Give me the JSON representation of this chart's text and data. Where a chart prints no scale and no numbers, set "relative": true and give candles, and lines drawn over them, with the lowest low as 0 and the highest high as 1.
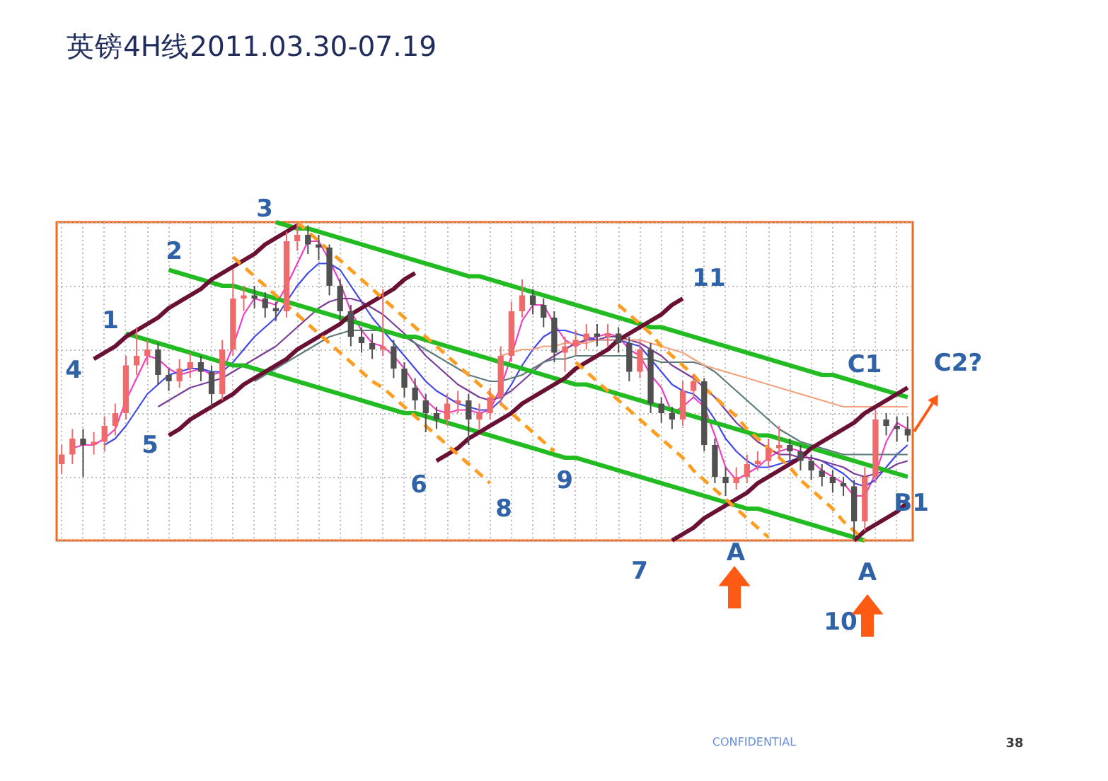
{
  "chart_data": {
    "type": "candlestick",
    "relative": true,
    "title": "英镑4H线2011.03.30-07.19",
    "grid": true,
    "tick_labels": false,
    "categories": [
      null,
      null,
      null,
      null,
      null,
      null,
      null,
      null,
      null,
      null,
      null,
      null,
      null,
      null,
      null,
      null,
      null,
      null,
      null,
      null,
      null,
      null,
      null,
      null,
      null,
      null,
      null,
      null,
      null,
      null,
      null,
      null,
      null,
      null,
      null,
      null,
      null,
      null,
      null,
      null,
      null,
      null,
      null,
      null,
      null,
      null,
      null,
      null,
      null,
      null,
      null,
      null,
      null,
      null,
      null,
      null,
      null,
      null,
      null,
      null,
      null,
      null,
      null,
      null,
      null,
      null,
      null,
      null,
      null,
      null,
      null,
      null,
      null,
      null,
      null,
      null,
      null,
      null,
      null,
      null
    ],
    "ohlc": [
      [
        0.24,
        0.3,
        0.21,
        0.27
      ],
      [
        0.27,
        0.35,
        0.24,
        0.32
      ],
      [
        0.32,
        0.35,
        0.2,
        0.3
      ],
      [
        0.3,
        0.34,
        0.27,
        0.31
      ],
      [
        0.31,
        0.39,
        0.28,
        0.36
      ],
      [
        0.36,
        0.43,
        0.33,
        0.4
      ],
      [
        0.4,
        0.58,
        0.38,
        0.55
      ],
      [
        0.55,
        0.67,
        0.52,
        0.58
      ],
      [
        0.58,
        0.63,
        0.55,
        0.6
      ],
      [
        0.6,
        0.62,
        0.49,
        0.52
      ],
      [
        0.52,
        0.54,
        0.47,
        0.5
      ],
      [
        0.5,
        0.57,
        0.48,
        0.54
      ],
      [
        0.54,
        0.59,
        0.51,
        0.56
      ],
      [
        0.56,
        0.58,
        0.5,
        0.53
      ],
      [
        0.53,
        0.55,
        0.42,
        0.46
      ],
      [
        0.46,
        0.63,
        0.44,
        0.6
      ],
      [
        0.6,
        0.85,
        0.58,
        0.76
      ],
      [
        0.76,
        0.8,
        0.72,
        0.77
      ],
      [
        0.77,
        0.8,
        0.73,
        0.76
      ],
      [
        0.76,
        0.78,
        0.7,
        0.73
      ],
      [
        0.73,
        0.75,
        0.69,
        0.72
      ],
      [
        0.72,
        0.97,
        0.7,
        0.94
      ],
      [
        0.94,
        1.0,
        0.91,
        0.96
      ],
      [
        0.96,
        0.99,
        0.9,
        0.93
      ],
      [
        0.93,
        0.96,
        0.88,
        0.92
      ],
      [
        0.92,
        0.93,
        0.77,
        0.8
      ],
      [
        0.8,
        0.82,
        0.69,
        0.72
      ],
      [
        0.72,
        0.74,
        0.61,
        0.64
      ],
      [
        0.64,
        0.67,
        0.59,
        0.62
      ],
      [
        0.62,
        0.65,
        0.57,
        0.6
      ],
      [
        0.6,
        0.79,
        0.58,
        0.61
      ],
      [
        0.61,
        0.63,
        0.51,
        0.54
      ],
      [
        0.54,
        0.56,
        0.45,
        0.48
      ],
      [
        0.48,
        0.51,
        0.41,
        0.44
      ],
      [
        0.44,
        0.46,
        0.34,
        0.4
      ],
      [
        0.4,
        0.42,
        0.35,
        0.38
      ],
      [
        0.38,
        0.46,
        0.36,
        0.43
      ],
      [
        0.43,
        0.47,
        0.4,
        0.44
      ],
      [
        0.44,
        0.46,
        0.3,
        0.38
      ],
      [
        0.38,
        0.43,
        0.35,
        0.4
      ],
      [
        0.4,
        0.48,
        0.38,
        0.45
      ],
      [
        0.45,
        0.61,
        0.43,
        0.58
      ],
      [
        0.58,
        0.75,
        0.56,
        0.72
      ],
      [
        0.72,
        0.82,
        0.7,
        0.77
      ],
      [
        0.77,
        0.79,
        0.71,
        0.74
      ],
      [
        0.74,
        0.76,
        0.67,
        0.7
      ],
      [
        0.7,
        0.72,
        0.56,
        0.59
      ],
      [
        0.59,
        0.64,
        0.53,
        0.61
      ],
      [
        0.61,
        0.66,
        0.58,
        0.63
      ],
      [
        0.63,
        0.68,
        0.6,
        0.65
      ],
      [
        0.65,
        0.68,
        0.61,
        0.64
      ],
      [
        0.64,
        0.68,
        0.61,
        0.65
      ],
      [
        0.65,
        0.67,
        0.59,
        0.62
      ],
      [
        0.62,
        0.64,
        0.5,
        0.53
      ],
      [
        0.53,
        0.63,
        0.51,
        0.6
      ],
      [
        0.6,
        0.62,
        0.4,
        0.43
      ],
      [
        0.43,
        0.45,
        0.37,
        0.4
      ],
      [
        0.4,
        0.42,
        0.35,
        0.38
      ],
      [
        0.38,
        0.5,
        0.36,
        0.47
      ],
      [
        0.47,
        0.52,
        0.45,
        0.5
      ],
      [
        0.5,
        0.51,
        0.28,
        0.3
      ],
      [
        0.3,
        0.32,
        0.18,
        0.2
      ],
      [
        0.2,
        0.23,
        0.14,
        0.18
      ],
      [
        0.18,
        0.23,
        0.16,
        0.2
      ],
      [
        0.2,
        0.27,
        0.18,
        0.24
      ],
      [
        0.24,
        0.28,
        0.22,
        0.25
      ],
      [
        0.25,
        0.32,
        0.23,
        0.29
      ],
      [
        0.29,
        0.36,
        0.26,
        0.3
      ],
      [
        0.3,
        0.32,
        0.25,
        0.28
      ],
      [
        0.28,
        0.3,
        0.22,
        0.25
      ],
      [
        0.25,
        0.27,
        0.19,
        0.22
      ],
      [
        0.22,
        0.24,
        0.17,
        0.2
      ],
      [
        0.2,
        0.22,
        0.15,
        0.18
      ],
      [
        0.18,
        0.2,
        0.14,
        0.17
      ],
      [
        0.17,
        0.19,
        0.0,
        0.06
      ],
      [
        0.06,
        0.23,
        0.03,
        0.2
      ],
      [
        0.2,
        0.41,
        0.18,
        0.38
      ],
      [
        0.38,
        0.4,
        0.33,
        0.36
      ],
      [
        0.36,
        0.39,
        0.31,
        0.35
      ],
      [
        0.35,
        0.39,
        0.31,
        0.33
      ]
    ],
    "colors": [
      "#ef6b6b",
      "#ef6b6b",
      "#505050",
      "#ef6b6b",
      "#ef6b6b",
      "#ef6b6b",
      "#ef6b6b",
      "#ef6b6b",
      "#ef6b6b",
      "#505050",
      "#505050",
      "#ef6b6b",
      "#ef6b6b",
      "#505050",
      "#505050",
      "#ef6b6b",
      "#ef6b6b",
      "#ef6b6b",
      "#505050",
      "#505050",
      "#505050",
      "#ef6b6b",
      "#ef6b6b",
      "#505050",
      "#505050",
      "#505050",
      "#505050",
      "#505050",
      "#505050",
      "#505050",
      "#ef6b6b",
      "#505050",
      "#505050",
      "#505050",
      "#505050",
      "#505050",
      "#ef6b6b",
      "#ef6b6b",
      "#505050",
      "#ef6b6b",
      "#ef6b6b",
      "#ef6b6b",
      "#ef6b6b",
      "#ef6b6b",
      "#505050",
      "#505050",
      "#505050",
      "#ef6b6b",
      "#ef6b6b",
      "#ef6b6b",
      "#505050",
      "#ef6b6b",
      "#505050",
      "#505050",
      "#ef6b6b",
      "#505050",
      "#505050",
      "#505050",
      "#ef6b6b",
      "#ef6b6b",
      "#505050",
      "#505050",
      "#505050",
      "#ef6b6b",
      "#ef6b6b",
      "#ef6b6b",
      "#ef6b6b",
      "#ef6b6b",
      "#505050",
      "#505050",
      "#505050",
      "#505050",
      "#505050",
      "#505050",
      "#505050",
      "#ef6b6b",
      "#ef6b6b",
      "#505050",
      "#505050",
      "#505050"
    ],
    "series": [
      {
        "type": "line",
        "color": "#ee3fc4",
        "values": [
          null,
          0.29,
          0.3,
          0.3,
          0.32,
          0.35,
          0.44,
          0.51,
          0.58,
          0.57,
          0.54,
          0.52,
          0.53,
          0.54,
          0.52,
          0.53,
          0.61,
          0.71,
          0.76,
          0.75,
          0.74,
          0.8,
          0.87,
          0.94,
          0.94,
          0.88,
          0.81,
          0.72,
          0.66,
          0.62,
          0.61,
          0.58,
          0.54,
          0.49,
          0.44,
          0.41,
          0.4,
          0.41,
          0.41,
          0.4,
          0.41,
          0.48,
          0.58,
          0.69,
          0.74,
          0.74,
          0.68,
          0.63,
          0.61,
          0.63,
          0.64,
          0.65,
          0.64,
          0.6,
          0.58,
          0.52,
          0.48,
          0.4,
          0.42,
          0.45,
          0.42,
          0.33,
          0.23,
          0.19,
          0.21,
          0.23,
          0.26,
          0.28,
          0.29,
          0.28,
          0.25,
          0.22,
          0.2,
          0.18,
          0.14,
          0.14,
          0.21,
          0.31,
          0.37,
          0.35
        ]
      },
      {
        "type": "line",
        "color": "#3f48e8",
        "values": [
          null,
          null,
          null,
          null,
          0.3,
          0.32,
          0.36,
          0.41,
          0.46,
          0.49,
          0.52,
          0.53,
          0.54,
          0.54,
          0.53,
          0.53,
          0.56,
          0.6,
          0.64,
          0.67,
          0.7,
          0.75,
          0.8,
          0.84,
          0.87,
          0.87,
          0.85,
          0.8,
          0.75,
          0.7,
          0.66,
          0.62,
          0.58,
          0.54,
          0.5,
          0.47,
          0.45,
          0.43,
          0.42,
          0.41,
          0.41,
          0.44,
          0.49,
          0.55,
          0.6,
          0.64,
          0.66,
          0.66,
          0.65,
          0.64,
          0.63,
          0.63,
          0.63,
          0.62,
          0.61,
          0.57,
          0.53,
          0.49,
          0.47,
          0.46,
          0.43,
          0.38,
          0.32,
          0.28,
          0.25,
          0.23,
          0.23,
          0.24,
          0.25,
          0.26,
          0.26,
          0.25,
          0.23,
          0.21,
          0.18,
          0.17,
          0.19,
          0.23,
          0.27,
          0.3
        ]
      },
      {
        "type": "line",
        "color": "#7a3b99",
        "values": [
          null,
          null,
          null,
          null,
          null,
          null,
          null,
          null,
          null,
          0.42,
          0.44,
          0.46,
          0.48,
          0.49,
          0.5,
          0.51,
          0.53,
          0.55,
          0.57,
          0.59,
          0.61,
          0.64,
          0.67,
          0.7,
          0.73,
          0.75,
          0.76,
          0.76,
          0.75,
          0.73,
          0.71,
          0.68,
          0.65,
          0.62,
          0.58,
          0.55,
          0.52,
          0.49,
          0.47,
          0.45,
          0.44,
          0.45,
          0.47,
          0.5,
          0.53,
          0.56,
          0.58,
          0.6,
          0.62,
          0.63,
          0.63,
          0.64,
          0.64,
          0.63,
          0.62,
          0.6,
          0.58,
          0.55,
          0.53,
          0.51,
          0.48,
          0.45,
          0.41,
          0.37,
          0.34,
          0.31,
          0.29,
          0.27,
          0.27,
          0.26,
          0.26,
          0.25,
          0.24,
          0.23,
          0.21,
          0.2,
          0.21,
          0.22,
          0.24,
          0.25
        ]
      },
      {
        "type": "line",
        "color": "#5e7b7b",
        "values": [
          null,
          null,
          null,
          null,
          null,
          null,
          null,
          null,
          null,
          null,
          null,
          null,
          null,
          null,
          null,
          null,
          null,
          null,
          0.5,
          0.52,
          0.54,
          0.56,
          0.58,
          0.6,
          0.62,
          0.64,
          0.65,
          0.66,
          0.66,
          0.66,
          0.66,
          0.65,
          0.64,
          0.62,
          0.6,
          0.58,
          0.56,
          0.54,
          0.52,
          0.51,
          0.5,
          0.5,
          0.51,
          0.52,
          0.54,
          0.56,
          0.57,
          0.57,
          0.58,
          0.58,
          0.58,
          0.58,
          0.58,
          0.58,
          0.57,
          0.57,
          0.56,
          0.56,
          0.56,
          0.56,
          0.55,
          0.53,
          0.5,
          0.47,
          0.44,
          0.41,
          0.38,
          0.35,
          0.33,
          0.31,
          0.3,
          0.29,
          0.28,
          0.27,
          0.27,
          0.27,
          0.27,
          0.27,
          0.27,
          0.27
        ]
      },
      {
        "type": "line",
        "color": "#f3a27d",
        "values": [
          null,
          null,
          null,
          null,
          null,
          null,
          null,
          null,
          null,
          null,
          null,
          null,
          null,
          null,
          null,
          null,
          null,
          null,
          null,
          null,
          null,
          null,
          null,
          null,
          null,
          null,
          null,
          null,
          null,
          null,
          null,
          null,
          null,
          null,
          null,
          null,
          null,
          null,
          null,
          null,
          null,
          0.58,
          0.59,
          0.6,
          0.6,
          0.61,
          0.61,
          0.62,
          0.62,
          0.62,
          0.63,
          0.63,
          0.63,
          0.63,
          0.63,
          0.62,
          0.61,
          0.6,
          0.59,
          0.57,
          0.55,
          0.54,
          0.53,
          0.52,
          0.51,
          0.5,
          0.49,
          0.48,
          0.47,
          0.46,
          0.45,
          0.44,
          0.43,
          0.42,
          0.42,
          0.42,
          0.42,
          0.42,
          0.42,
          0.42
        ]
      },
      {
        "type": "line",
        "color": "#22bb22",
        "values": [
          null,
          null,
          null,
          null,
          null,
          null,
          null,
          null,
          null,
          null,
          null,
          null,
          null,
          null,
          null,
          null,
          null,
          null,
          null,
          null,
          1.0,
          0.99,
          0.98,
          0.98,
          0.97,
          0.96,
          0.95,
          0.94,
          0.93,
          0.92,
          0.91,
          0.9,
          0.89,
          0.88,
          0.87,
          0.86,
          0.85,
          0.84,
          0.83,
          0.83,
          0.82,
          0.81,
          0.8,
          0.79,
          0.78,
          0.77,
          0.76,
          0.75,
          0.74,
          0.73,
          0.72,
          0.71,
          0.7,
          0.69,
          0.68,
          0.67,
          0.67,
          0.66,
          0.65,
          0.64,
          0.63,
          0.62,
          0.61,
          0.6,
          0.59,
          0.58,
          0.57,
          0.56,
          0.55,
          0.54,
          0.53,
          0.52,
          0.52,
          0.51,
          0.5,
          0.49,
          0.48,
          0.47,
          0.46,
          0.45
        ]
      },
      {
        "type": "line",
        "color": "#22bb22",
        "values": [
          null,
          null,
          null,
          null,
          null,
          null,
          null,
          null,
          null,
          null,
          0.85,
          0.84,
          0.83,
          0.82,
          0.81,
          0.8,
          0.8,
          0.79,
          0.78,
          0.77,
          0.76,
          0.75,
          0.74,
          0.73,
          0.72,
          0.71,
          0.7,
          0.69,
          0.68,
          0.67,
          0.66,
          0.65,
          0.64,
          0.64,
          0.63,
          0.62,
          0.61,
          0.6,
          0.59,
          0.58,
          0.57,
          0.56,
          0.55,
          0.54,
          0.53,
          0.52,
          0.51,
          0.5,
          0.49,
          0.49,
          0.48,
          0.47,
          0.46,
          0.45,
          0.44,
          0.43,
          0.42,
          0.41,
          0.4,
          0.39,
          0.38,
          0.37,
          0.36,
          0.35,
          0.34,
          0.33,
          0.33,
          0.32,
          0.31,
          0.3,
          0.29,
          0.28,
          0.27,
          0.26,
          0.25,
          0.24,
          0.23,
          0.22,
          0.21,
          0.2
        ]
      },
      {
        "type": "line",
        "color": "#22bb22",
        "values": [
          null,
          null,
          null,
          null,
          null,
          null,
          0.65,
          0.64,
          0.63,
          0.62,
          0.61,
          0.6,
          0.59,
          0.58,
          0.57,
          0.56,
          0.55,
          0.55,
          0.54,
          0.53,
          0.52,
          0.51,
          0.5,
          0.49,
          0.48,
          0.47,
          0.46,
          0.45,
          0.44,
          0.43,
          0.42,
          0.41,
          0.4,
          0.4,
          0.39,
          0.38,
          0.37,
          0.36,
          0.35,
          0.34,
          0.33,
          0.32,
          0.31,
          0.3,
          0.29,
          0.28,
          0.27,
          0.26,
          0.26,
          0.25,
          0.24,
          0.23,
          0.22,
          0.21,
          0.2,
          0.19,
          0.18,
          0.17,
          0.16,
          0.15,
          0.14,
          0.13,
          0.12,
          0.11,
          0.1,
          0.1,
          0.09,
          0.08,
          0.07,
          0.06,
          0.05,
          0.04,
          0.03,
          0.02,
          0.01,
          0.0,
          null,
          null,
          null,
          null
        ]
      },
      {
        "type": "line",
        "color": "#6a1035",
        "values": [
          null,
          null,
          null,
          0.57,
          0.59,
          0.61,
          0.64,
          0.66,
          0.68,
          0.7,
          0.73,
          0.75,
          0.77,
          0.79,
          0.82,
          0.84,
          0.86,
          0.88,
          0.9,
          0.93,
          0.95,
          0.97,
          0.99,
          null,
          null,
          null,
          null,
          null,
          null,
          null,
          null,
          null,
          null,
          null,
          null,
          null,
          null,
          null,
          null,
          null,
          null,
          null,
          null,
          null,
          null,
          null,
          null,
          null,
          null,
          null,
          null,
          null,
          null,
          null,
          null,
          null,
          null,
          null,
          null,
          null,
          null,
          null,
          null,
          null,
          null,
          null,
          null,
          null,
          null,
          null,
          null,
          null,
          null,
          null,
          null,
          null,
          null,
          null,
          null,
          null
        ]
      },
      {
        "type": "line",
        "color": "#6a1035",
        "values": [
          null,
          null,
          null,
          null,
          null,
          null,
          null,
          null,
          null,
          null,
          0.33,
          0.35,
          0.38,
          0.4,
          0.42,
          0.44,
          0.46,
          0.49,
          0.51,
          0.53,
          0.55,
          0.57,
          0.6,
          0.62,
          0.64,
          0.66,
          0.68,
          0.71,
          0.73,
          0.75,
          0.77,
          0.79,
          0.82,
          0.84,
          null,
          null,
          null,
          null,
          null,
          null,
          null,
          null,
          null,
          null,
          null,
          null,
          null,
          null,
          null,
          null,
          null,
          null,
          null,
          null,
          null,
          null,
          null,
          null,
          null,
          null,
          null,
          null,
          null,
          null,
          null,
          null,
          null,
          null,
          null,
          null,
          null,
          null,
          null,
          null,
          null,
          null,
          null,
          null,
          null,
          null
        ]
      },
      {
        "type": "line",
        "color": "#6a1035",
        "values": [
          null,
          null,
          null,
          null,
          null,
          null,
          null,
          null,
          null,
          null,
          null,
          null,
          null,
          null,
          null,
          null,
          null,
          null,
          null,
          null,
          null,
          null,
          null,
          null,
          null,
          null,
          null,
          null,
          null,
          null,
          null,
          null,
          null,
          null,
          null,
          0.25,
          0.27,
          0.29,
          0.32,
          0.34,
          0.36,
          0.38,
          0.4,
          0.43,
          0.45,
          0.47,
          0.49,
          0.51,
          0.54,
          0.56,
          0.58,
          0.6,
          0.63,
          0.65,
          0.67,
          0.69,
          0.71,
          0.74,
          0.76,
          null,
          null,
          null,
          null,
          null,
          null,
          null,
          null,
          null,
          null,
          null,
          null,
          null,
          null,
          null,
          null,
          null,
          null,
          null,
          null,
          null
        ]
      },
      {
        "type": "line",
        "color": "#6a1035",
        "values": [
          null,
          null,
          null,
          null,
          null,
          null,
          null,
          null,
          null,
          null,
          null,
          null,
          null,
          null,
          null,
          null,
          null,
          null,
          null,
          null,
          null,
          null,
          null,
          null,
          null,
          null,
          null,
          null,
          null,
          null,
          null,
          null,
          null,
          null,
          null,
          null,
          null,
          null,
          null,
          null,
          null,
          null,
          null,
          null,
          null,
          null,
          null,
          null,
          null,
          null,
          null,
          null,
          null,
          null,
          null,
          null,
          null,
          0.0,
          0.02,
          0.04,
          0.07,
          0.09,
          0.11,
          0.13,
          0.15,
          0.18,
          0.2,
          0.22,
          0.24,
          0.26,
          0.29,
          0.31,
          0.33,
          0.35,
          0.37,
          0.4,
          0.42,
          0.44,
          0.46,
          0.48
        ]
      },
      {
        "type": "line",
        "color": "#6a1035",
        "values": [
          null,
          null,
          null,
          null,
          null,
          null,
          null,
          null,
          null,
          null,
          null,
          null,
          null,
          null,
          null,
          null,
          null,
          null,
          null,
          null,
          null,
          null,
          null,
          null,
          null,
          null,
          null,
          null,
          null,
          null,
          null,
          null,
          null,
          null,
          null,
          null,
          null,
          null,
          null,
          null,
          null,
          null,
          null,
          null,
          null,
          null,
          null,
          null,
          null,
          null,
          null,
          null,
          null,
          null,
          null,
          null,
          null,
          null,
          null,
          null,
          null,
          null,
          null,
          null,
          null,
          null,
          null,
          null,
          null,
          null,
          null,
          null,
          null,
          null,
          0.0,
          0.03,
          0.05,
          0.07,
          0.09,
          0.12
        ]
      },
      {
        "type": "line",
        "color": "#ff9d21",
        "line_style": "dashed",
        "values": [
          null,
          null,
          null,
          null,
          null,
          null,
          null,
          null,
          null,
          null,
          null,
          null,
          null,
          null,
          null,
          null,
          0.89,
          0.86,
          0.83,
          0.8,
          0.77,
          0.74,
          0.71,
          0.68,
          0.65,
          0.62,
          0.59,
          0.56,
          0.53,
          0.5,
          0.48,
          0.45,
          0.42,
          0.39,
          0.36,
          0.33,
          0.3,
          0.27,
          0.24,
          0.21,
          0.18,
          null,
          null,
          null,
          null,
          null,
          null,
          null,
          null,
          null,
          null,
          null,
          null,
          null,
          null,
          null,
          null,
          null,
          null,
          null,
          null,
          null,
          null,
          null,
          null,
          null,
          null,
          null,
          null,
          null,
          null,
          null,
          null,
          null,
          null,
          null,
          null,
          null,
          null,
          null
        ]
      },
      {
        "type": "line",
        "color": "#ff9d21",
        "line_style": "dashed",
        "values": [
          null,
          null,
          null,
          null,
          null,
          null,
          null,
          null,
          null,
          null,
          null,
          null,
          null,
          null,
          null,
          null,
          null,
          null,
          null,
          null,
          null,
          null,
          1.0,
          0.97,
          0.94,
          0.91,
          0.88,
          0.85,
          0.82,
          0.79,
          0.76,
          0.73,
          0.7,
          0.67,
          0.64,
          0.61,
          0.58,
          0.55,
          0.52,
          0.49,
          0.46,
          0.43,
          0.4,
          0.37,
          0.34,
          0.31,
          0.28,
          null,
          null,
          null,
          null,
          null,
          null,
          null,
          null,
          null,
          null,
          null,
          null,
          null,
          null,
          null,
          null,
          null,
          null,
          null,
          null,
          null,
          null,
          null,
          null,
          null,
          null,
          null,
          null,
          null,
          null,
          null,
          null,
          null
        ]
      },
      {
        "type": "line",
        "color": "#ff9d21",
        "line_style": "dashed",
        "values": [
          null,
          null,
          null,
          null,
          null,
          null,
          null,
          null,
          null,
          null,
          null,
          null,
          null,
          null,
          null,
          null,
          null,
          null,
          null,
          null,
          null,
          null,
          null,
          null,
          null,
          null,
          null,
          null,
          null,
          null,
          null,
          null,
          null,
          null,
          null,
          null,
          null,
          null,
          null,
          null,
          null,
          null,
          null,
          null,
          null,
          null,
          null,
          null,
          null,
          null,
          null,
          null,
          0.74,
          0.71,
          0.68,
          0.65,
          0.61,
          0.58,
          0.55,
          0.52,
          0.48,
          0.45,
          0.42,
          0.39,
          0.35,
          0.32,
          0.29,
          0.26,
          0.23,
          0.19,
          0.16,
          0.13,
          0.1,
          0.06,
          0.03,
          0.0,
          null,
          null,
          null,
          null
        ]
      },
      {
        "type": "line",
        "color": "#ff9d21",
        "line_style": "dashed",
        "values": [
          null,
          null,
          null,
          null,
          null,
          null,
          null,
          null,
          null,
          null,
          null,
          null,
          null,
          null,
          null,
          null,
          null,
          null,
          null,
          null,
          null,
          null,
          null,
          null,
          null,
          null,
          null,
          null,
          null,
          null,
          null,
          null,
          null,
          null,
          null,
          null,
          null,
          null,
          null,
          null,
          null,
          null,
          null,
          null,
          null,
          null,
          null,
          null,
          0.56,
          0.53,
          0.5,
          0.47,
          0.44,
          0.41,
          0.38,
          0.35,
          0.32,
          0.29,
          0.26,
          0.22,
          0.19,
          0.16,
          0.13,
          0.1,
          0.07,
          0.04,
          0.01,
          null,
          null,
          null,
          null,
          null,
          null,
          null,
          null,
          null,
          null,
          null,
          null,
          null
        ]
      }
    ],
    "annotations": [
      "1",
      "2",
      "3",
      "4",
      "5",
      "6",
      "7",
      "8",
      "9",
      "10",
      "11",
      "A",
      "A",
      "C1",
      "C2?",
      "B1",
      "CONFIDENTIAL",
      "38"
    ]
  }
}
